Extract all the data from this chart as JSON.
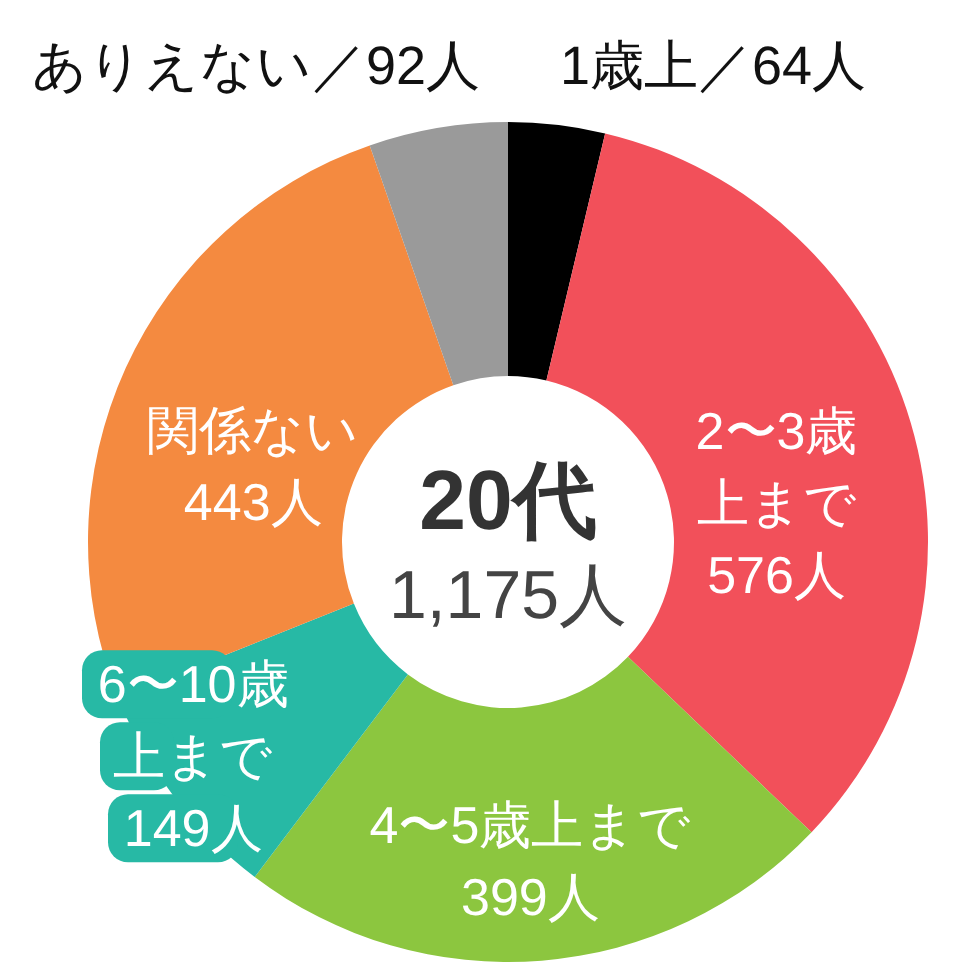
{
  "chart_data": {
    "type": "donut",
    "title": "20代",
    "subtitle": "1,175人",
    "categories": [
      "1歳上",
      "2〜3歳上まで",
      "4〜5歳上まで",
      "6〜10歳上まで",
      "関係ない",
      "ありえない"
    ],
    "values": [
      64,
      576,
      399,
      149,
      443,
      92
    ],
    "colors": [
      "#000000",
      "#f2505a",
      "#8cc63f",
      "#27b9a5",
      "#f48a40",
      "#9a9a9a"
    ],
    "value_labels": [
      "／64人",
      "576人",
      "399人",
      "149人",
      "443人",
      "／92人"
    ]
  }
}
